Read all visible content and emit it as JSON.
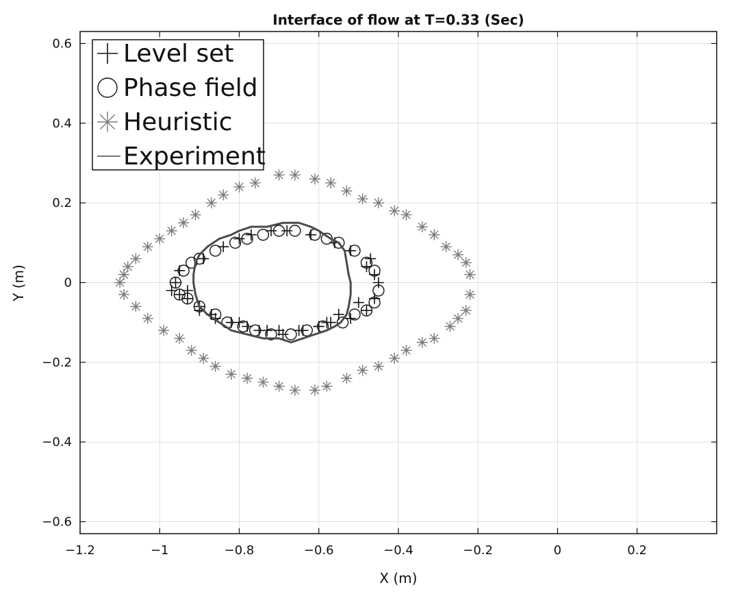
{
  "chart_data": {
    "type": "scatter",
    "title": "Interface of flow at T=0.33 (Sec)",
    "xlabel": "X (m)",
    "ylabel": "Y (m)",
    "xlim": [
      -1.2,
      0.4
    ],
    "ylim": [
      -0.63,
      0.63
    ],
    "xticks": [
      -1.2,
      -1,
      -0.8,
      -0.6,
      -0.4,
      -0.2,
      0,
      0.2
    ],
    "xtick_labels": [
      "−1.2",
      "−1",
      "−0.8",
      "−0.6",
      "−0.4",
      "−0.2",
      "0",
      "0.2"
    ],
    "yticks": [
      -0.6,
      -0.4,
      -0.2,
      0,
      0.2,
      0.4,
      0.6
    ],
    "ytick_labels": [
      "−0.6",
      "−0.4",
      "−0.2",
      "0",
      "0.2",
      "0.4",
      "0.6"
    ],
    "grid": true,
    "legend_position": "top-left",
    "series": [
      {
        "name": "Level set",
        "marker": "plus",
        "color": "#111111",
        "x": [
          -0.97,
          -0.95,
          -0.93,
          -0.9,
          -0.87,
          -0.82,
          -0.78,
          -0.73,
          -0.7,
          -0.65,
          -0.6,
          -0.57,
          -0.52,
          -0.48,
          -0.46,
          -0.45,
          -0.46,
          -0.48,
          -0.52,
          -0.56,
          -0.62,
          -0.68,
          -0.72,
          -0.77,
          -0.8,
          -0.84,
          -0.89,
          -0.95,
          -0.96,
          -0.93,
          -0.9,
          -0.86,
          -0.8,
          -0.75,
          -0.69,
          -0.64,
          -0.6,
          -0.58,
          -0.55,
          -0.5,
          -0.47
        ],
        "y": [
          -0.02,
          -0.03,
          -0.04,
          -0.06,
          -0.08,
          -0.1,
          -0.11,
          -0.12,
          -0.12,
          -0.12,
          -0.11,
          -0.1,
          -0.09,
          -0.07,
          -0.04,
          0.0,
          0.02,
          0.04,
          0.08,
          0.1,
          0.12,
          0.13,
          0.13,
          0.12,
          0.11,
          0.09,
          0.06,
          0.03,
          0.0,
          -0.02,
          -0.07,
          -0.09,
          -0.1,
          -0.12,
          -0.13,
          -0.12,
          -0.11,
          -0.1,
          -0.08,
          -0.05,
          0.06
        ]
      },
      {
        "name": "Phase field",
        "marker": "circle",
        "color": "#111111",
        "x": [
          -0.96,
          -0.94,
          -0.92,
          -0.9,
          -0.86,
          -0.81,
          -0.78,
          -0.74,
          -0.7,
          -0.66,
          -0.61,
          -0.58,
          -0.55,
          -0.51,
          -0.48,
          -0.46,
          -0.45,
          -0.46,
          -0.48,
          -0.51,
          -0.54,
          -0.59,
          -0.63,
          -0.67,
          -0.72,
          -0.76,
          -0.79,
          -0.83,
          -0.86,
          -0.9,
          -0.93,
          -0.95
        ],
        "y": [
          0.0,
          0.03,
          0.05,
          0.06,
          0.08,
          0.1,
          0.11,
          0.12,
          0.13,
          0.13,
          0.12,
          0.11,
          0.1,
          0.08,
          0.05,
          0.03,
          -0.02,
          -0.05,
          -0.07,
          -0.08,
          -0.1,
          -0.11,
          -0.12,
          -0.13,
          -0.13,
          -0.12,
          -0.11,
          -0.1,
          -0.08,
          -0.06,
          -0.04,
          -0.03
        ]
      },
      {
        "name": "Heuristic",
        "marker": "asterisk",
        "color": "#7a7a7a",
        "x": [
          -1.1,
          -1.09,
          -1.08,
          -1.06,
          -1.03,
          -1.0,
          -0.97,
          -0.94,
          -0.91,
          -0.87,
          -0.84,
          -0.8,
          -0.76,
          -0.7,
          -0.66,
          -0.61,
          -0.57,
          -0.53,
          -0.49,
          -0.45,
          -0.41,
          -0.38,
          -0.34,
          -0.31,
          -0.28,
          -0.25,
          -0.23,
          -0.22,
          -0.22,
          -0.23,
          -0.25,
          -0.27,
          -0.31,
          -0.34,
          -0.38,
          -0.41,
          -0.45,
          -0.49,
          -0.53,
          -0.58,
          -0.61,
          -0.66,
          -0.7,
          -0.74,
          -0.78,
          -0.82,
          -0.86,
          -0.89,
          -0.92,
          -0.95,
          -0.99,
          -1.03,
          -1.06,
          -1.09
        ],
        "y": [
          0.0,
          0.02,
          0.04,
          0.06,
          0.09,
          0.11,
          0.13,
          0.15,
          0.17,
          0.2,
          0.22,
          0.24,
          0.25,
          0.27,
          0.27,
          0.26,
          0.25,
          0.23,
          0.21,
          0.2,
          0.18,
          0.17,
          0.14,
          0.12,
          0.09,
          0.07,
          0.05,
          0.02,
          -0.03,
          -0.07,
          -0.09,
          -0.11,
          -0.14,
          -0.15,
          -0.17,
          -0.19,
          -0.21,
          -0.22,
          -0.24,
          -0.26,
          -0.27,
          -0.27,
          -0.26,
          -0.25,
          -0.24,
          -0.23,
          -0.21,
          -0.19,
          -0.17,
          -0.14,
          -0.12,
          -0.09,
          -0.06,
          -0.03
        ]
      },
      {
        "name": "Experiment",
        "marker": "line",
        "color": "#4a4a4a",
        "x": [
          -0.91,
          -0.9,
          -0.88,
          -0.85,
          -0.82,
          -0.8,
          -0.77,
          -0.73,
          -0.69,
          -0.65,
          -0.62,
          -0.6,
          -0.57,
          -0.55,
          -0.535,
          -0.53,
          -0.525,
          -0.52,
          -0.52,
          -0.525,
          -0.53,
          -0.545,
          -0.56,
          -0.58,
          -0.61,
          -0.64,
          -0.67,
          -0.7,
          -0.74,
          -0.78,
          -0.82,
          -0.85,
          -0.88,
          -0.9,
          -0.91,
          -0.915,
          -0.915,
          -0.91
        ],
        "y": [
          0.05,
          0.07,
          0.09,
          0.11,
          0.12,
          0.13,
          0.14,
          0.14,
          0.15,
          0.15,
          0.14,
          0.13,
          0.11,
          0.1,
          0.08,
          0.05,
          0.02,
          0.0,
          -0.03,
          -0.06,
          -0.08,
          -0.1,
          -0.11,
          -0.12,
          -0.13,
          -0.14,
          -0.15,
          -0.14,
          -0.14,
          -0.13,
          -0.12,
          -0.1,
          -0.08,
          -0.06,
          -0.03,
          0.0,
          0.02,
          0.05
        ]
      }
    ]
  }
}
